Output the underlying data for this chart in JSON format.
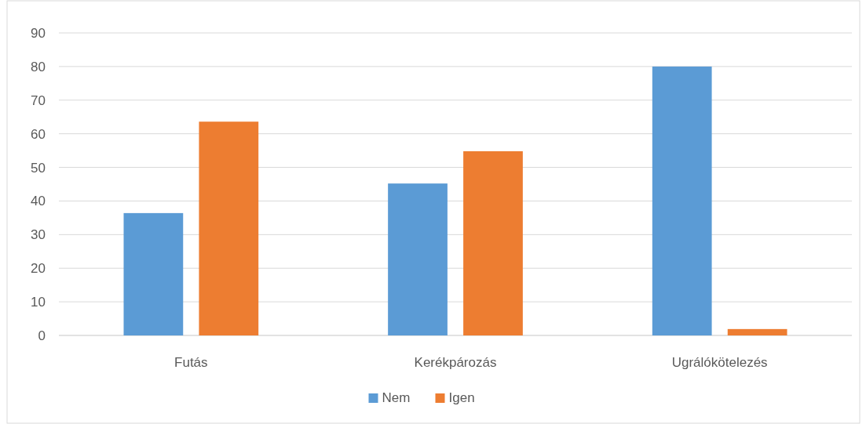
{
  "chart_data": {
    "type": "bar",
    "categories": [
      "Futás",
      "Kerékpározás",
      "Ugrálókötelezés"
    ],
    "series": [
      {
        "name": "Nem",
        "color": "#5b9bd5",
        "values": [
          36.4,
          45.2,
          80
        ]
      },
      {
        "name": "Igen",
        "color": "#ed7d31",
        "values": [
          63.6,
          54.8,
          1.9
        ]
      }
    ],
    "ylim": [
      0,
      90
    ],
    "yticks": [
      0,
      10,
      20,
      30,
      40,
      50,
      60,
      70,
      80,
      90
    ],
    "grid": "y",
    "legend": "bottom"
  }
}
